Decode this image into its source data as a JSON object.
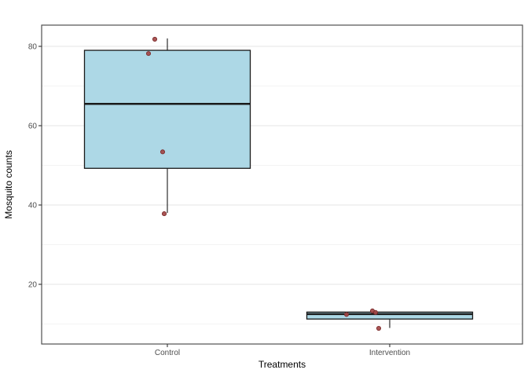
{
  "chart_data": {
    "type": "boxplot",
    "title": "",
    "xlabel": "Treatments",
    "ylabel": "Mosquito counts",
    "categories": [
      "Control",
      "Intervention"
    ],
    "y_ticks": [
      20,
      40,
      60,
      80
    ],
    "y_minor_gridlines": [
      10,
      30,
      50,
      70
    ],
    "ylim": [
      4.95,
      85.35
    ],
    "grid": "on",
    "legend": "none",
    "series": [
      {
        "name": "Control",
        "stats": {
          "whisker_low": 38,
          "q1": 49.25,
          "median": 65.5,
          "q3": 79,
          "whisker_high": 82
        },
        "raw_values": [
          38,
          53,
          78,
          82
        ],
        "points": [
          {
            "value": 82,
            "dx": -16,
            "dy": 1
          },
          {
            "value": 78,
            "dx": -24,
            "dy": -1
          },
          {
            "value": 53,
            "dx": -6,
            "dy": -2
          },
          {
            "value": 38,
            "dx": -4,
            "dy": 1
          }
        ]
      },
      {
        "name": "Intervention",
        "stats": {
          "whisker_low": 9,
          "q1": 11.25,
          "median": 12.5,
          "q3": 13,
          "whisker_high": 13
        },
        "raw_values": [
          9,
          12,
          13,
          13
        ],
        "points": [
          {
            "value": 12,
            "dx": -55,
            "dy": -2
          },
          {
            "value": 13,
            "dx": -22,
            "dy": -1.5
          },
          {
            "value": 13,
            "dx": -18,
            "dy": 0.5
          },
          {
            "value": 9,
            "dx": -14,
            "dy": 0.5
          }
        ]
      }
    ],
    "colors": {
      "box_fill": "#ADD8E6",
      "box_stroke": "#1a1a1a",
      "median_stroke": "#1a1a1a",
      "point_fill": "#a34747",
      "point_stroke": "#7c2d2d",
      "grid_major": "#e6e6e6",
      "grid_minor": "#f3f3f3",
      "panel_border": "#4f4f4f",
      "tick_mark": "#333333",
      "tick_label": "#4d4d4d",
      "axis_title": "#000000",
      "background": "#ffffff"
    }
  }
}
